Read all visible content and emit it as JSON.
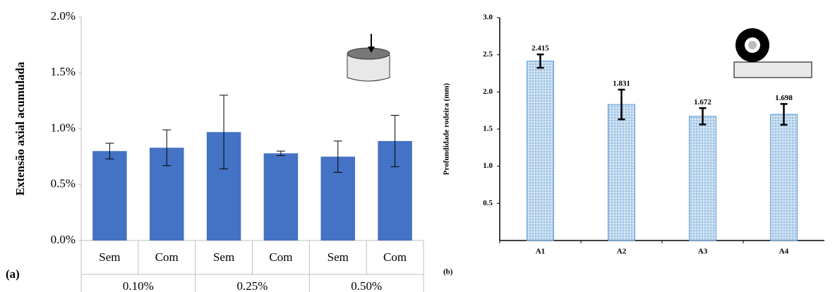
{
  "chart_data": [
    {
      "type": "bar",
      "panel": "(a)",
      "y_label": "Extensão axial acumulada",
      "categories": [
        "Sem",
        "Com",
        "Sem",
        "Com",
        "Sem",
        "Com"
      ],
      "groups": [
        "0.10%",
        "0.25%",
        "0.50%"
      ],
      "values": [
        0.8,
        0.83,
        0.97,
        0.78,
        0.75,
        0.89
      ],
      "errors": [
        0.07,
        0.16,
        0.33,
        0.02,
        0.14,
        0.23
      ],
      "color": "#4472c4",
      "ylim": [
        0,
        2
      ],
      "yticks": [
        {
          "value": 0,
          "label": "0.0%"
        },
        {
          "value": 0.5,
          "label": "0.5%"
        },
        {
          "value": 1,
          "label": "1.0%"
        },
        {
          "value": 1.5,
          "label": "1.5%"
        },
        {
          "value": 2,
          "label": "2.0%"
        }
      ]
    },
    {
      "type": "bar",
      "panel": "(b)",
      "y_label": "Profundidade rodeira (mm)",
      "categories": [
        "A1",
        "A2",
        "A3",
        "A4"
      ],
      "values": [
        2.415,
        1.831,
        1.672,
        1.698
      ],
      "errors": [
        0.09,
        0.2,
        0.11,
        0.14
      ],
      "color": "#9dc3e6",
      "ylim": [
        0,
        3
      ],
      "yticks": [
        0.5,
        {
          "value": 1,
          "label": "1.0"
        },
        1.5,
        {
          "value": 2,
          "label": "2.0"
        },
        2.5,
        {
          "value": 3,
          "label": "3.0"
        }
      ]
    }
  ]
}
